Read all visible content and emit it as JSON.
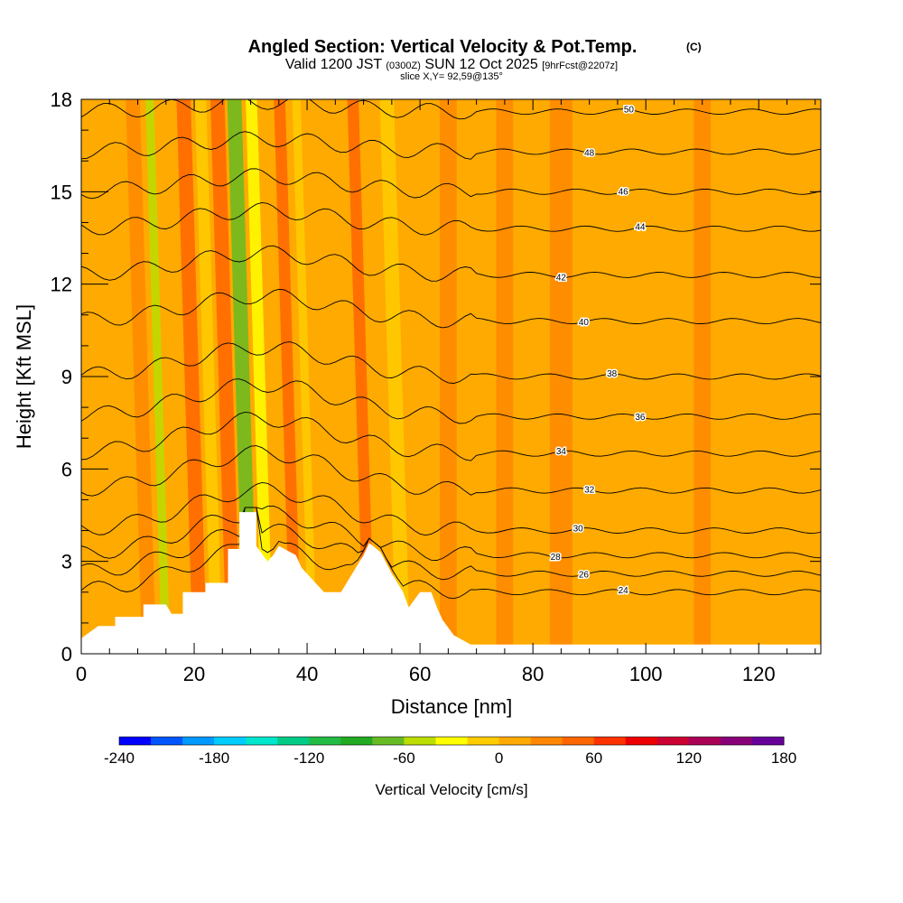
{
  "chart_data": {
    "type": "heatmap",
    "title": "Angled Section: Vertical Velocity & Pot.Temp.",
    "title_units": "(C)",
    "subtitle": {
      "valid_prefix": "Valid 1200 JST",
      "zulu": "(0300Z)",
      "date": "SUN 12 Oct 2025",
      "forecast": "[9hrFcst@2207z]"
    },
    "slice_label": "slice X,Y= 92,59@135°",
    "xlabel": "Distance [nm]",
    "ylabel": "Height [Kft MSL]",
    "xlim": [
      0,
      131
    ],
    "ylim": [
      0,
      18
    ],
    "x_ticks": [
      "0",
      "20",
      "40",
      "60",
      "80",
      "100",
      "120"
    ],
    "y_ticks": [
      "0",
      "3",
      "6",
      "9",
      "12",
      "15",
      "18"
    ],
    "colorbar": {
      "label": "Vertical Velocity [cm/s]",
      "min": -240,
      "max": 180,
      "step": 20,
      "ticks": [
        "-240",
        "-180",
        "-120",
        "-60",
        "0",
        "60",
        "120",
        "180"
      ],
      "colors": [
        "#0000ff",
        "#0055ff",
        "#0099ff",
        "#00ccff",
        "#00e6cc",
        "#00cc88",
        "#22bb44",
        "#22aa22",
        "#66bb22",
        "#bbdd00",
        "#ffff00",
        "#ffcc00",
        "#ffaa00",
        "#ff8800",
        "#ff6600",
        "#ff3300",
        "#ee0000",
        "#cc0033",
        "#aa0055",
        "#880077",
        "#660099"
      ]
    },
    "terrain_top_kft": [
      {
        "x": 0,
        "h": 0.5
      },
      {
        "x": 3,
        "h": 0.9
      },
      {
        "x": 6,
        "h": 0.9
      },
      {
        "x": 6,
        "h": 1.2
      },
      {
        "x": 11,
        "h": 1.2
      },
      {
        "x": 11,
        "h": 1.6
      },
      {
        "x": 15,
        "h": 1.6
      },
      {
        "x": 16,
        "h": 1.3
      },
      {
        "x": 18,
        "h": 1.3
      },
      {
        "x": 18,
        "h": 2.0
      },
      {
        "x": 22,
        "h": 2.0
      },
      {
        "x": 22,
        "h": 2.3
      },
      {
        "x": 26,
        "h": 2.3
      },
      {
        "x": 26,
        "h": 3.4
      },
      {
        "x": 28,
        "h": 3.4
      },
      {
        "x": 28,
        "h": 4.6
      },
      {
        "x": 31,
        "h": 4.6
      },
      {
        "x": 31,
        "h": 3.5
      },
      {
        "x": 33,
        "h": 3.0
      },
      {
        "x": 34,
        "h": 3.2
      },
      {
        "x": 35,
        "h": 3.5
      },
      {
        "x": 38,
        "h": 3.2
      },
      {
        "x": 39,
        "h": 2.8
      },
      {
        "x": 41,
        "h": 2.4
      },
      {
        "x": 43,
        "h": 2.0
      },
      {
        "x": 46,
        "h": 2.0
      },
      {
        "x": 48,
        "h": 2.6
      },
      {
        "x": 50,
        "h": 3.2
      },
      {
        "x": 51,
        "h": 3.6
      },
      {
        "x": 53,
        "h": 3.3
      },
      {
        "x": 55,
        "h": 2.6
      },
      {
        "x": 57,
        "h": 2.0
      },
      {
        "x": 58,
        "h": 1.5
      },
      {
        "x": 60,
        "h": 2.0
      },
      {
        "x": 62,
        "h": 2.0
      },
      {
        "x": 63,
        "h": 1.5
      },
      {
        "x": 64,
        "h": 1.1
      },
      {
        "x": 66,
        "h": 0.6
      },
      {
        "x": 69,
        "h": 0.3
      },
      {
        "x": 131,
        "h": 0.3
      }
    ],
    "theta_contours": [
      {
        "level": "24",
        "base_kft": 2.0,
        "label_x": 96
      },
      {
        "level": "26",
        "base_kft": 2.6,
        "label_x": 89
      },
      {
        "level": "28",
        "base_kft": 3.2,
        "label_x": 84
      },
      {
        "level": "30",
        "base_kft": 4.0,
        "label_x": 88
      },
      {
        "level": "32",
        "base_kft": 5.3,
        "label_x": 90
      },
      {
        "level": "34",
        "base_kft": 6.5,
        "label_x": 85
      },
      {
        "level": "36",
        "base_kft": 7.7,
        "label_x": 99
      },
      {
        "level": "38",
        "base_kft": 9.0,
        "label_x": 94
      },
      {
        "level": "40",
        "base_kft": 10.8,
        "label_x": 89
      },
      {
        "level": "42",
        "base_kft": 12.3,
        "label_x": 85
      },
      {
        "level": "44",
        "base_kft": 13.8,
        "label_x": 99
      },
      {
        "level": "46",
        "base_kft": 15.0,
        "label_x": 96
      },
      {
        "level": "48",
        "base_kft": 16.3,
        "label_x": 90
      },
      {
        "level": "50",
        "base_kft": 17.6,
        "label_x": 97
      }
    ],
    "vertical_velocity_bands": [
      {
        "x": 12,
        "width": 2.5,
        "value": 30
      },
      {
        "x": 15,
        "width": 1.5,
        "value": -60
      },
      {
        "x": 21,
        "width": 2.5,
        "value": 40
      },
      {
        "x": 24,
        "width": 2.0,
        "value": -20
      },
      {
        "x": 27,
        "width": 2.5,
        "value": 50
      },
      {
        "x": 30,
        "width": 2.5,
        "value": -80
      },
      {
        "x": 33,
        "width": 2.0,
        "value": -30
      },
      {
        "x": 38,
        "width": 2.0,
        "value": 50
      },
      {
        "x": 41,
        "width": 1.5,
        "value": -20
      },
      {
        "x": 51,
        "width": 2.0,
        "value": 50
      },
      {
        "x": 57,
        "width": 2.5,
        "value": -10
      },
      {
        "x": 65,
        "width": 3.0,
        "value": 20
      },
      {
        "x": 75,
        "width": 3.0,
        "value": 25
      },
      {
        "x": 85,
        "width": 4.0,
        "value": 20
      },
      {
        "x": 110,
        "width": 3.0,
        "value": 20
      }
    ]
  }
}
